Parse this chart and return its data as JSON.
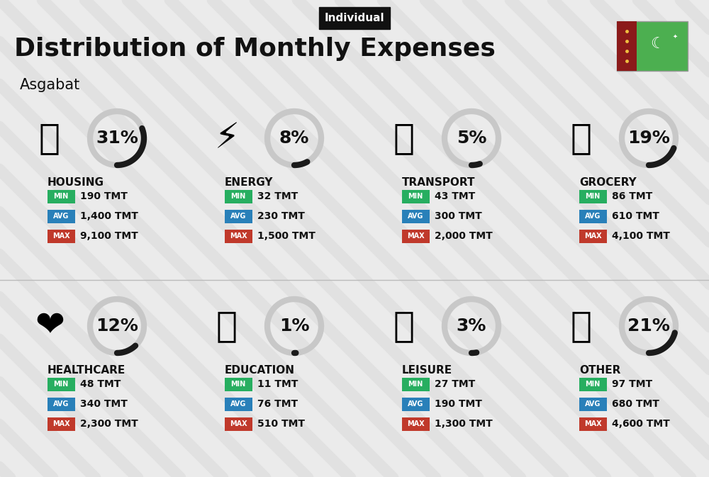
{
  "title": "Distribution of Monthly Expenses",
  "subtitle": "Asgabat",
  "tag": "Individual",
  "background_color": "#ebebeb",
  "categories": [
    {
      "name": "HOUSING",
      "percent": 31,
      "min_val": "190 TMT",
      "avg_val": "1,400 TMT",
      "max_val": "9,100 TMT",
      "row": 0,
      "col": 0
    },
    {
      "name": "ENERGY",
      "percent": 8,
      "min_val": "32 TMT",
      "avg_val": "230 TMT",
      "max_val": "1,500 TMT",
      "row": 0,
      "col": 1
    },
    {
      "name": "TRANSPORT",
      "percent": 5,
      "min_val": "43 TMT",
      "avg_val": "300 TMT",
      "max_val": "2,000 TMT",
      "row": 0,
      "col": 2
    },
    {
      "name": "GROCERY",
      "percent": 19,
      "min_val": "86 TMT",
      "avg_val": "610 TMT",
      "max_val": "4,100 TMT",
      "row": 0,
      "col": 3
    },
    {
      "name": "HEALTHCARE",
      "percent": 12,
      "min_val": "48 TMT",
      "avg_val": "340 TMT",
      "max_val": "2,300 TMT",
      "row": 1,
      "col": 0
    },
    {
      "name": "EDUCATION",
      "percent": 1,
      "min_val": "11 TMT",
      "avg_val": "76 TMT",
      "max_val": "510 TMT",
      "row": 1,
      "col": 1
    },
    {
      "name": "LEISURE",
      "percent": 3,
      "min_val": "27 TMT",
      "avg_val": "190 TMT",
      "max_val": "1,300 TMT",
      "row": 1,
      "col": 2
    },
    {
      "name": "OTHER",
      "percent": 21,
      "min_val": "97 TMT",
      "avg_val": "680 TMT",
      "max_val": "4,600 TMT",
      "row": 1,
      "col": 3
    }
  ],
  "color_min": "#27ae60",
  "color_avg": "#2980b9",
  "color_max": "#c0392b",
  "text_color": "#111111",
  "donut_color": "#1a1a1a",
  "donut_bg": "#c8c8c8",
  "stripe_color": "#d8d8d8",
  "title_fontsize": 26,
  "subtitle_fontsize": 15,
  "tag_fontsize": 11,
  "cat_fontsize": 11,
  "pct_fontsize": 18,
  "val_fontsize": 10,
  "badge_label_fontsize": 7
}
